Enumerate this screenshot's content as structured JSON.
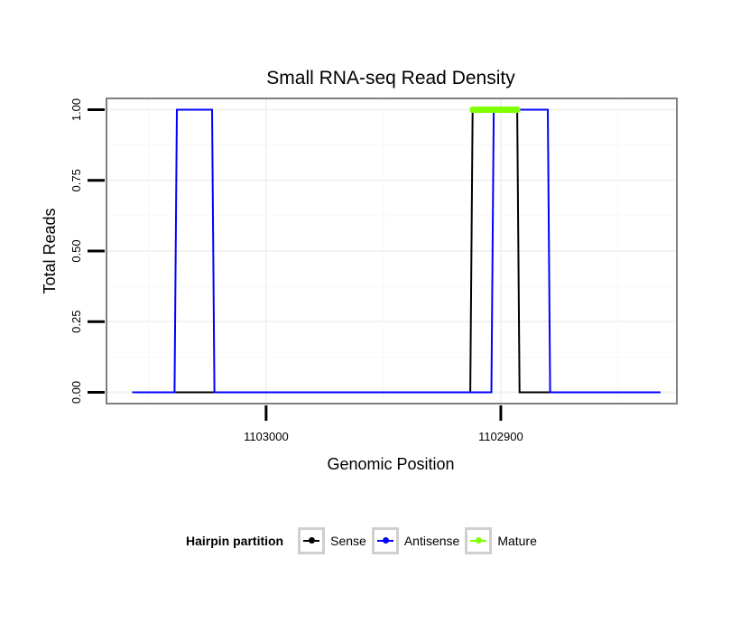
{
  "chart_data": {
    "type": "line",
    "title": "Small RNA-seq Read Density",
    "xlabel": "Genomic Position",
    "ylabel": "Total Reads",
    "x_reversed": true,
    "xlim": [
      1103068,
      1102825
    ],
    "ylim": [
      -0.04,
      1.04
    ],
    "x_ticks": [
      1103000,
      1102900
    ],
    "x_tick_labels": [
      "1103000",
      "1102900"
    ],
    "y_ticks": [
      0,
      0.25,
      0.5,
      0.75,
      1
    ],
    "y_tick_labels": [
      "0.00",
      "0.25",
      "0.50",
      "0.75",
      "1.00"
    ],
    "grid": true,
    "series": [
      {
        "name": "Sense",
        "color": "#000000",
        "x": [
          1103057,
          1102913,
          1102912,
          1102893,
          1102892,
          1102832
        ],
        "y": [
          0,
          0,
          1,
          1,
          0,
          0
        ]
      },
      {
        "name": "Antisense",
        "color": "#0000ff",
        "x": [
          1103057,
          1103039,
          1103038,
          1103023,
          1103022,
          1102904,
          1102903,
          1102880,
          1102879,
          1102832
        ],
        "y": [
          0,
          0,
          1,
          1,
          0,
          0,
          1,
          1,
          0,
          0
        ]
      },
      {
        "name": "Mature",
        "color": "#7fff00",
        "x": [
          1102912,
          1102893
        ],
        "y": [
          1,
          1
        ]
      }
    ],
    "legend": {
      "title": "Hairpin partition",
      "position": "bottom",
      "entries": [
        "Sense",
        "Antisense",
        "Mature"
      ]
    }
  }
}
